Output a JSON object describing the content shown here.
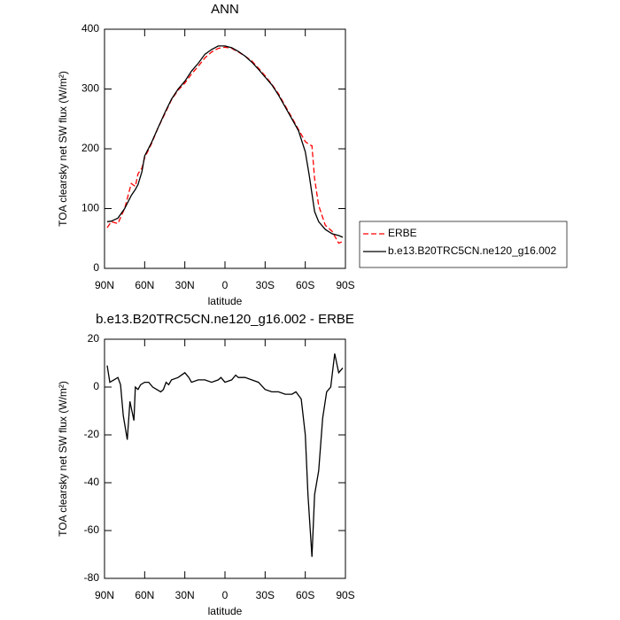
{
  "chart_data": [
    {
      "type": "line",
      "title": "ANN",
      "xlabel": "latitude",
      "ylabel": "TOA clearsky net SW flux (W/m²)",
      "x": [
        88,
        85,
        80,
        75,
        70,
        67,
        65,
        62,
        60,
        55,
        50,
        45,
        40,
        35,
        30,
        25,
        20,
        15,
        10,
        5,
        0,
        -5,
        -10,
        -15,
        -20,
        -25,
        -30,
        -35,
        -40,
        -45,
        -50,
        -55,
        -60,
        -63,
        -65,
        -67,
        -70,
        -75,
        -80,
        -85,
        -88
      ],
      "series": [
        {
          "name": "ERBE",
          "color": "#ff0000",
          "style": "dashed",
          "values": [
            68,
            78,
            75,
            100,
            142,
            137,
            158,
            168,
            185,
            208,
            235,
            258,
            282,
            298,
            310,
            325,
            338,
            352,
            362,
            368,
            370,
            368,
            362,
            355,
            347,
            335,
            322,
            308,
            292,
            272,
            252,
            232,
            212,
            207,
            205,
            150,
            105,
            72,
            62,
            42,
            45
          ]
        },
        {
          "name": "b.e13.B20TRC5CN.ne120_g16.002",
          "color": "#000000",
          "style": "solid",
          "values": [
            78,
            79,
            84,
            100,
            122,
            132,
            140,
            162,
            188,
            210,
            235,
            260,
            283,
            300,
            313,
            330,
            343,
            358,
            366,
            372,
            372,
            369,
            363,
            355,
            345,
            333,
            320,
            307,
            290,
            270,
            250,
            230,
            195,
            155,
            125,
            95,
            78,
            65,
            58,
            55,
            52
          ]
        }
      ],
      "xlim": [
        90,
        -90
      ],
      "xticks": [
        {
          "value": 90,
          "label": "90N"
        },
        {
          "value": 60,
          "label": "60N"
        },
        {
          "value": 30,
          "label": "30N"
        },
        0,
        {
          "value": -30,
          "label": "30S"
        },
        {
          "value": -60,
          "label": "60S"
        },
        {
          "value": -90,
          "label": "90S"
        }
      ],
      "ylim": [
        0,
        400
      ],
      "yticks": [
        0,
        100,
        200,
        300,
        400
      ],
      "legend": "right"
    },
    {
      "type": "line",
      "title": "b.e13.B20TRC5CN.ne120_g16.002 - ERBE",
      "xlabel": "latitude",
      "ylabel": "TOA clearsky net SW flux (W/m²)",
      "x": [
        88,
        86,
        83,
        80,
        78,
        76,
        73,
        71,
        68,
        67,
        65,
        63,
        60,
        57,
        54,
        51,
        48,
        46,
        44,
        42,
        40,
        35,
        30,
        27,
        25,
        20,
        15,
        10,
        5,
        3,
        0,
        -5,
        -8,
        -10,
        -15,
        -20,
        -25,
        -30,
        -35,
        -40,
        -45,
        -50,
        -53,
        -57,
        -60,
        -62,
        -65,
        -67,
        -70,
        -73,
        -76,
        -79,
        -82,
        -85,
        -88
      ],
      "series": [
        {
          "color": "#000000",
          "style": "solid",
          "values": [
            9,
            2,
            3,
            4,
            1,
            -12,
            -22,
            -6,
            -14,
            0,
            -1,
            1,
            2,
            2,
            0,
            -1,
            -2,
            -1,
            2,
            1,
            3,
            4,
            6,
            4,
            2,
            3,
            3,
            2,
            3,
            4,
            2,
            3,
            5,
            4,
            4,
            3,
            2,
            -1,
            -2,
            -2,
            -3,
            -3,
            -2,
            -5,
            -20,
            -45,
            -71,
            -45,
            -35,
            -13,
            -2,
            0,
            14,
            6,
            8
          ]
        }
      ],
      "xlim": [
        90,
        -90
      ],
      "xticks": [
        {
          "value": 90,
          "label": "90N"
        },
        {
          "value": 60,
          "label": "60N"
        },
        {
          "value": 30,
          "label": "30N"
        },
        0,
        {
          "value": -30,
          "label": "30S"
        },
        {
          "value": -60,
          "label": "60S"
        },
        {
          "value": -90,
          "label": "90S"
        }
      ],
      "ylim": [
        -80,
        20
      ],
      "yticks": [
        -80,
        -60,
        -40,
        -20,
        0,
        20
      ]
    }
  ]
}
